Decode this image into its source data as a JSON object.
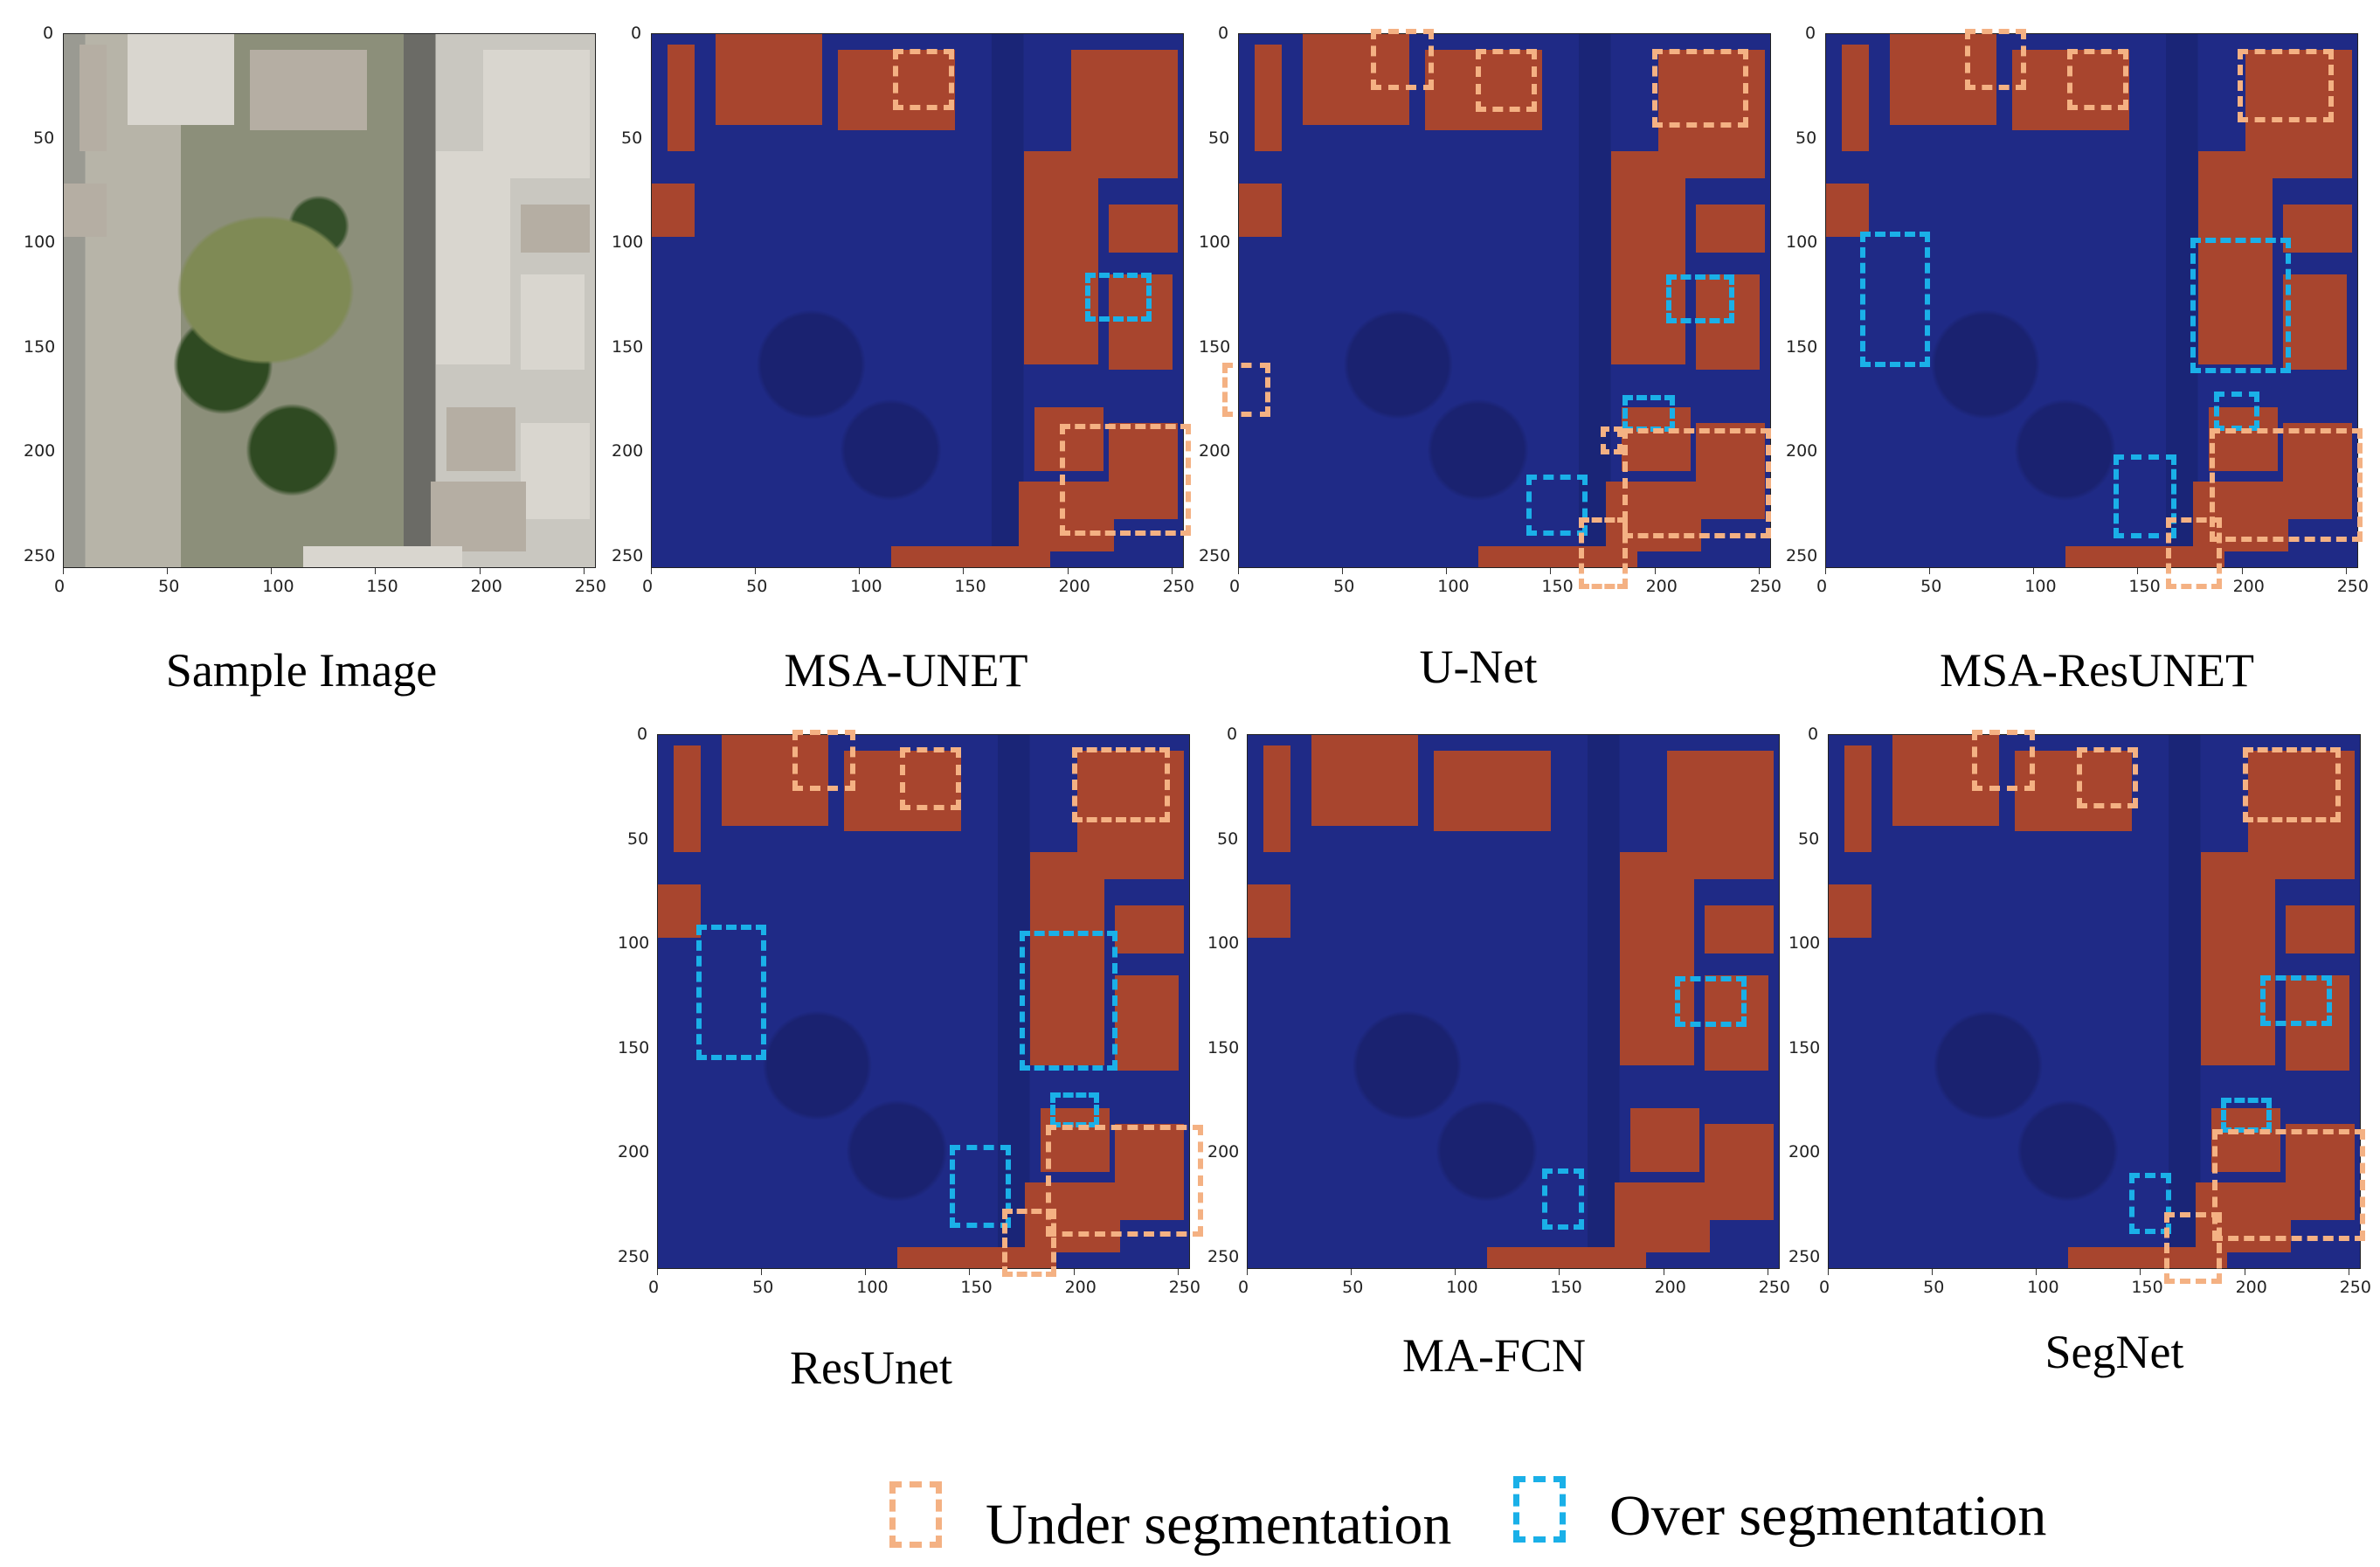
{
  "colors": {
    "under": "#f4b183",
    "over": "#1ab0e8",
    "building": "#a8452e",
    "background": "#1f2a86"
  },
  "x_ticks": [
    "0",
    "50",
    "100",
    "150",
    "200",
    "250"
  ],
  "y_ticks": [
    "0",
    "50",
    "100",
    "150",
    "200",
    "250"
  ],
  "panels": [
    {
      "id": "sample",
      "caption": "Sample Image",
      "kind": "photo"
    },
    {
      "id": "msa-unet",
      "caption": "MSA-UNET",
      "kind": "mask"
    },
    {
      "id": "u-net",
      "caption": "U-Net",
      "kind": "mask"
    },
    {
      "id": "msa-resunet",
      "caption": "MSA-ResUNET",
      "kind": "mask"
    },
    {
      "id": "resunet",
      "caption": "ResUnet",
      "kind": "mask"
    },
    {
      "id": "ma-fcn",
      "caption": "MA-FCN",
      "kind": "mask"
    },
    {
      "id": "segnet",
      "caption": "SegNet",
      "kind": "mask"
    }
  ],
  "legend": {
    "under_label": "Under segmentation",
    "over_label": "Over segmentation",
    "under_icon": "dashed-square-orange-icon",
    "over_icon": "dashed-square-blue-icon"
  }
}
